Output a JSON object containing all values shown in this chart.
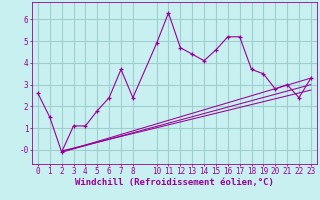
{
  "background_color": "#c8f0f0",
  "grid_color": "#a0cece",
  "line_color": "#990099",
  "xlabel": "Windchill (Refroidissement éolien,°C)",
  "xlim": [
    -0.5,
    23.5
  ],
  "ylim": [
    -0.65,
    6.8
  ],
  "ytick_vals": [
    0,
    1,
    2,
    3,
    4,
    5,
    6
  ],
  "ytick_labels": [
    "-0",
    "1",
    "2",
    "3",
    "4",
    "5",
    "6"
  ],
  "xtick_positions": [
    0,
    1,
    2,
    3,
    4,
    5,
    6,
    7,
    8,
    10,
    11,
    12,
    13,
    14,
    15,
    16,
    17,
    18,
    19,
    20,
    21,
    22,
    23
  ],
  "xtick_labels": [
    "0",
    "1",
    "2",
    "3",
    "4",
    "5",
    "6",
    "7",
    "8",
    "10",
    "11",
    "12",
    "13",
    "14",
    "15",
    "16",
    "17",
    "18",
    "19",
    "20",
    "21",
    "22",
    "23"
  ],
  "scatter_x": [
    0,
    1,
    2,
    3,
    4,
    5,
    6,
    7,
    8,
    10,
    11,
    12,
    13,
    14,
    15,
    16,
    17,
    18,
    19,
    20,
    21,
    22,
    23
  ],
  "scatter_y": [
    2.6,
    1.5,
    -0.1,
    1.1,
    1.1,
    1.8,
    2.4,
    3.7,
    2.4,
    4.9,
    6.3,
    4.7,
    4.4,
    4.1,
    4.6,
    5.2,
    5.2,
    3.7,
    3.5,
    2.8,
    3.0,
    2.4,
    3.3
  ],
  "line1_x": [
    2,
    23
  ],
  "line1_y": [
    -0.1,
    3.3
  ],
  "line2_x": [
    2,
    23
  ],
  "line2_y": [
    -0.1,
    3.0
  ],
  "line3_x": [
    2,
    23
  ],
  "line3_y": [
    -0.05,
    2.75
  ],
  "tick_fontsize": 5.5,
  "label_fontsize": 6.5
}
